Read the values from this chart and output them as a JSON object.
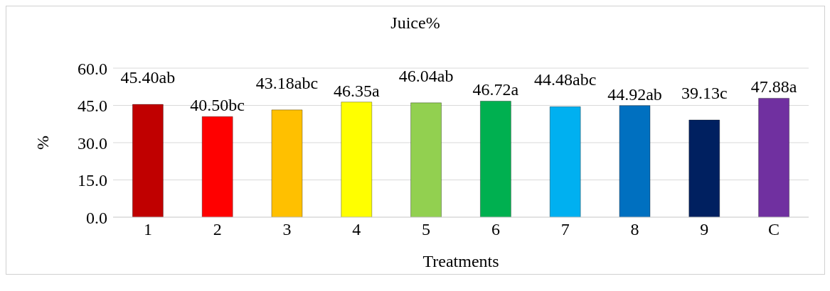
{
  "chart_data": {
    "type": "bar",
    "title": "Juice%",
    "xlabel": "Treatments",
    "ylabel": "%",
    "categories": [
      "1",
      "2",
      "3",
      "4",
      "5",
      "6",
      "7",
      "8",
      "9",
      "C"
    ],
    "values": [
      45.4,
      40.5,
      43.18,
      46.35,
      46.04,
      46.72,
      44.48,
      44.92,
      39.13,
      47.88
    ],
    "value_labels": [
      "45.40ab",
      "40.50bc",
      "43.18abc",
      "46.35a",
      "46.04ab",
      "46.72a",
      "44.48abc",
      "44.92ab",
      "39.13c",
      "47.88a"
    ],
    "colors": [
      "#c00000",
      "#ff0000",
      "#ffc000",
      "#ffff00",
      "#92d050",
      "#00b050",
      "#00b0f0",
      "#0070c0",
      "#002060",
      "#7030a0"
    ],
    "ylim": [
      0,
      60
    ],
    "yticks": [
      {
        "value": 0,
        "label": "0.0"
      },
      {
        "value": 15,
        "label": "15.0"
      },
      {
        "value": 30,
        "label": "30.0"
      },
      {
        "value": 45,
        "label": "45.0"
      },
      {
        "value": 60,
        "label": "60.0"
      }
    ],
    "grid": "y",
    "legend": false
  }
}
